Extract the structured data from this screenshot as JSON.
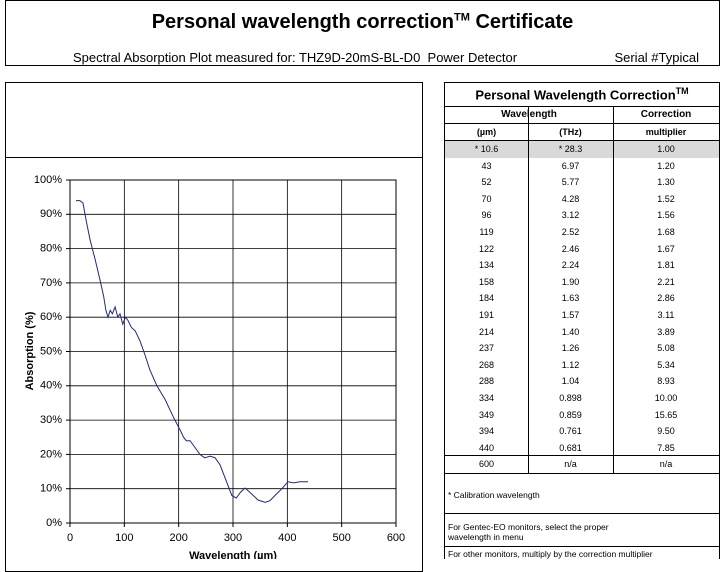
{
  "header": {
    "title": "Personal wavelength correction",
    "title_mark": "TM",
    "title_suffix": "Certificate",
    "subtitle": "Spectral Absorption Plot measured for: THZ9D-20mS-BL-D0  Power Detector",
    "serial": "Serial #Typical"
  },
  "chart_data": {
    "type": "line",
    "x_label": "Wavelength (µm)",
    "y_label": "Absorption (%)",
    "x": [
      11,
      18,
      24,
      30,
      37,
      46,
      55,
      62,
      66,
      70,
      74,
      78,
      83,
      88,
      92,
      97,
      102,
      107,
      113,
      120,
      129,
      138,
      147,
      160,
      175,
      190,
      203,
      209,
      214,
      221,
      230,
      239,
      248,
      258,
      267,
      276,
      287,
      298,
      306,
      314,
      322,
      334,
      346,
      359,
      368,
      377,
      390,
      401,
      412,
      423,
      438
    ],
    "values": [
      94,
      94,
      93.3,
      88,
      82.5,
      77,
      71,
      66,
      62,
      60,
      62,
      61,
      63,
      60,
      61,
      58,
      60,
      59,
      57,
      56,
      53,
      49,
      44.6,
      40,
      36,
      31,
      27,
      25,
      24,
      24,
      22,
      20,
      19,
      19.5,
      19,
      17,
      12.5,
      8,
      7.3,
      9,
      10.2,
      8.5,
      6.7,
      6,
      6.5,
      8,
      10,
      12,
      11.7,
      12,
      12
    ],
    "color": "#1f2a7a",
    "xlim": [
      0,
      600
    ],
    "xticks": [
      0,
      100,
      200,
      300,
      400,
      500,
      600
    ],
    "ylim": [
      0,
      100
    ],
    "yticks": [
      {
        "value": 0,
        "label": "0%"
      },
      {
        "value": 10,
        "label": "10%"
      },
      {
        "value": 20,
        "label": "20%"
      },
      {
        "value": 30,
        "label": "30%"
      },
      {
        "value": 40,
        "label": "40%"
      },
      {
        "value": 50,
        "label": "50%"
      },
      {
        "value": 60,
        "label": "60%"
      },
      {
        "value": 70,
        "label": "70%"
      },
      {
        "value": 80,
        "label": "80%"
      },
      {
        "value": 90,
        "label": "90%"
      },
      {
        "value": 100,
        "label": "100%"
      }
    ],
    "grid": true
  },
  "table": {
    "title": "Personal Wavelength Correction",
    "title_mark": "TM",
    "headers": {
      "wavelength": "Wavelength",
      "correction": "Correction",
      "um": "(µm)",
      "thz": "(THz)",
      "multiplier": "multiplier"
    },
    "rows": [
      [
        "* 10.6",
        "* 28.3",
        "1.00"
      ],
      [
        "43",
        "6.97",
        "1.20"
      ],
      [
        "52",
        "5.77",
        "1.30"
      ],
      [
        "70",
        "4.28",
        "1.52"
      ],
      [
        "96",
        "3.12",
        "1.56"
      ],
      [
        "119",
        "2.52",
        "1.68"
      ],
      [
        "122",
        "2.46",
        "1.67"
      ],
      [
        "134",
        "2.24",
        "1.81"
      ],
      [
        "158",
        "1.90",
        "2.21"
      ],
      [
        "184",
        "1.63",
        "2.86"
      ],
      [
        "191",
        "1.57",
        "3.11"
      ],
      [
        "214",
        "1.40",
        "3.89"
      ],
      [
        "237",
        "1.26",
        "5.08"
      ],
      [
        "268",
        "1.12",
        "5.34"
      ],
      [
        "288",
        "1.04",
        "8.93"
      ],
      [
        "334",
        "0.898",
        "10.00"
      ],
      [
        "349",
        "0.859",
        "15.65"
      ],
      [
        "394",
        "0.761",
        "9.50"
      ],
      [
        "440",
        "0.681",
        "7.85"
      ],
      [
        "600",
        "n/a",
        "n/a"
      ]
    ],
    "notes": [
      "* Calibration wavelength",
      "For Gentec-EO monitors, select the proper wavelength in menu",
      "For other monitors, multiply by the correction multiplier"
    ]
  }
}
